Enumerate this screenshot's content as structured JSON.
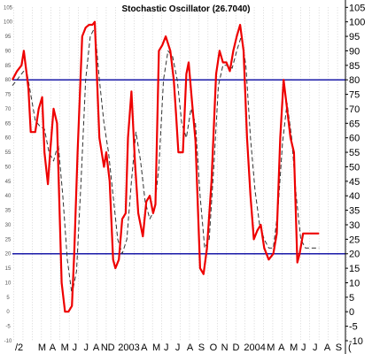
{
  "chart_data": {
    "type": "line",
    "title": "Stochastic Oscillator (26.7040)",
    "ylim": [
      -10,
      105
    ],
    "y_ticks": [
      -10,
      -5,
      0,
      5,
      10,
      15,
      20,
      25,
      30,
      35,
      40,
      45,
      50,
      55,
      60,
      65,
      70,
      75,
      80,
      85,
      90,
      95,
      100,
      105
    ],
    "y_tick_labels": [
      "-10",
      "-5",
      "0",
      "5",
      "10",
      "15",
      "20",
      "25",
      "30",
      "35",
      "40",
      "45",
      "50",
      "55",
      "60",
      "65",
      "70",
      "75",
      "80",
      "85",
      "90",
      "95",
      "100",
      "105"
    ],
    "x_ticks": [
      {
        "label": "/2",
        "x": 0
      },
      {
        "label": "M",
        "x": 2
      },
      {
        "label": "A",
        "x": 3
      },
      {
        "label": "M",
        "x": 4
      },
      {
        "label": "J",
        "x": 5
      },
      {
        "label": "J",
        "x": 6
      },
      {
        "label": "A",
        "x": 6.8
      },
      {
        "label": "N",
        "x": 7.5
      },
      {
        "label": "D",
        "x": 8.1
      },
      {
        "label": "2003",
        "x": 9
      },
      {
        "label": "A",
        "x": 11
      },
      {
        "label": "M",
        "x": 12
      },
      {
        "label": "J",
        "x": 13
      },
      {
        "label": "J",
        "x": 14
      },
      {
        "label": "A",
        "x": 15
      },
      {
        "label": "S",
        "x": 16
      },
      {
        "label": "O",
        "x": 17
      },
      {
        "label": "N",
        "x": 18
      },
      {
        "label": "D",
        "x": 19
      },
      {
        "label": "2004",
        "x": 20
      },
      {
        "label": "M",
        "x": 22
      },
      {
        "label": "A",
        "x": 23
      },
      {
        "label": "M",
        "x": 24
      },
      {
        "label": "J",
        "x": 25
      },
      {
        "label": "J",
        "x": 26
      },
      {
        "label": "A",
        "x": 27
      },
      {
        "label": "S",
        "x": 28
      },
      {
        "label": "(",
        "x": 29.1
      }
    ],
    "reference_lines": [
      80,
      20
    ],
    "grid": "vertical dotted",
    "series": [
      {
        "line": "solid red",
        "color": "#ee0000",
        "x": [
          0,
          0.4,
          0.8,
          1.0,
          1.4,
          1.6,
          2.0,
          2.3,
          2.6,
          2.8,
          3.1,
          3.3,
          3.6,
          3.9,
          4.3,
          4.6,
          4.9,
          5.2,
          5.4,
          5.7,
          6.1,
          6.4,
          6.7,
          7.0,
          7.2,
          7.6,
          8.0,
          8.2,
          8.5,
          8.8,
          9.0,
          9.3,
          9.6,
          9.9,
          10.1,
          10.4,
          10.7,
          11.0,
          11.4,
          11.7,
          12.0,
          12.3,
          12.5,
          12.8,
          13.1,
          13.4,
          13.8,
          14.1,
          14.3,
          14.5,
          14.9,
          15.2,
          15.4,
          15.7,
          16.0,
          16.4,
          16.7,
          17.0,
          17.4,
          17.8,
          18.1,
          18.4,
          18.7,
          19.0,
          19.3,
          19.6,
          19.9,
          20.2,
          20.5,
          20.8,
          21.1,
          21.4,
          21.7,
          22.0,
          22.4,
          22.8,
          23.1,
          23.4,
          23.7,
          24.0,
          24.3,
          24.6,
          24.9,
          25.1,
          25.4,
          25.7,
          26.0,
          26.3,
          26.5,
          26.8
        ],
        "y": [
          80,
          83,
          85,
          90,
          77,
          62,
          62,
          70,
          74,
          55,
          44,
          55,
          70,
          65,
          10,
          0,
          0,
          2,
          20,
          55,
          95,
          98,
          99,
          99,
          100,
          60,
          50,
          55,
          45,
          18,
          15,
          18,
          32,
          34,
          60,
          76,
          52,
          34,
          26,
          38,
          40,
          34,
          37,
          90,
          92,
          95,
          90,
          80,
          68,
          55,
          55,
          82,
          86,
          72,
          59,
          15,
          13,
          22,
          45,
          82,
          90,
          86,
          86,
          83,
          90,
          95,
          99,
          90,
          60,
          40,
          25,
          28,
          30,
          22,
          18,
          20,
          27,
          60,
          80,
          70,
          60,
          55,
          17,
          20,
          27,
          27,
          27,
          27,
          27,
          27
        ]
      },
      {
        "line": "dashed dark",
        "color": "#333333",
        "x": [
          0,
          0.4,
          0.8,
          1.2,
          1.6,
          2.0,
          2.4,
          2.8,
          3.2,
          3.6,
          4.0,
          4.4,
          4.8,
          5.2,
          5.6,
          6.0,
          6.4,
          6.8,
          7.2,
          7.6,
          8.0,
          8.4,
          8.8,
          9.2,
          9.6,
          10.0,
          10.4,
          10.8,
          11.2,
          11.6,
          12.0,
          12.4,
          12.8,
          13.2,
          13.6,
          14.0,
          14.4,
          14.8,
          15.2,
          15.6,
          16.0,
          16.4,
          16.8,
          17.2,
          17.6,
          18.0,
          18.4,
          18.8,
          19.2,
          19.6,
          20.0,
          20.4,
          20.8,
          21.2,
          21.6,
          22.0,
          22.4,
          22.8,
          23.2,
          23.6,
          24.0,
          24.4,
          24.8,
          25.2,
          25.6,
          26.0,
          26.4,
          26.8
        ],
        "y": [
          78,
          80,
          82,
          84,
          75,
          66,
          64,
          63,
          55,
          52,
          58,
          40,
          18,
          6,
          14,
          45,
          80,
          95,
          98,
          80,
          65,
          55,
          40,
          25,
          20,
          25,
          45,
          62,
          52,
          38,
          32,
          35,
          50,
          80,
          90,
          88,
          80,
          65,
          60,
          70,
          65,
          40,
          22,
          25,
          50,
          78,
          85,
          85,
          84,
          90,
          95,
          85,
          60,
          42,
          30,
          25,
          22,
          22,
          35,
          58,
          72,
          60,
          40,
          25,
          22,
          22,
          22,
          22
        ]
      }
    ]
  }
}
